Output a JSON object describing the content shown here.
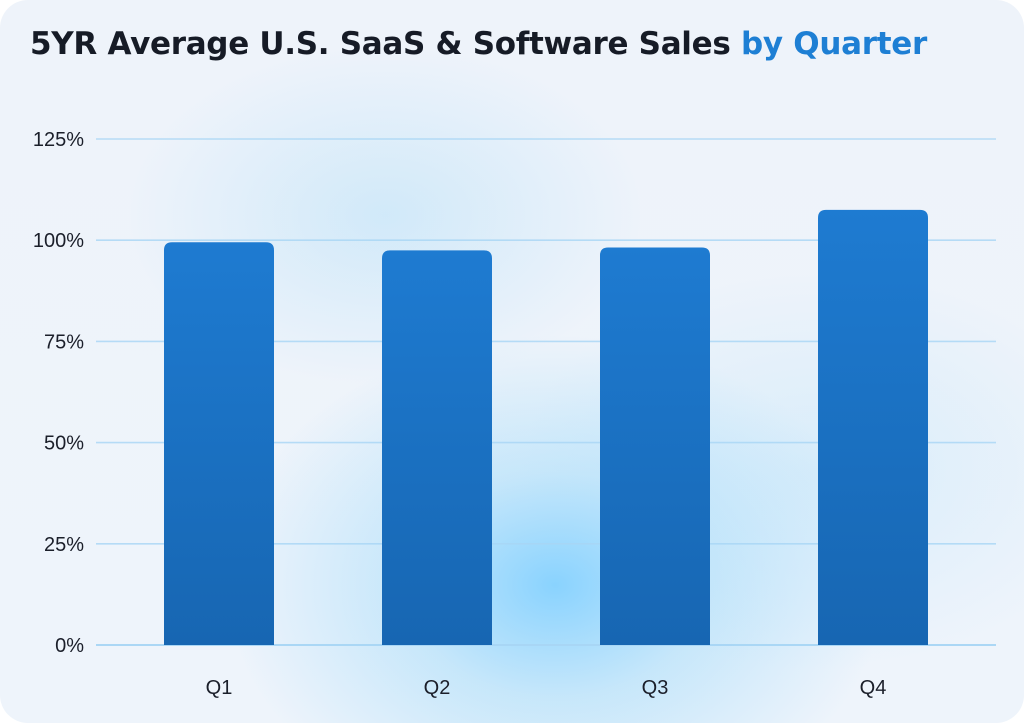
{
  "title": {
    "main": "5YR Average U.S. SaaS & Software Sales",
    "accent": "by Quarter"
  },
  "colors": {
    "bar": "#1c77cc",
    "bar_dark": "#1664b0",
    "accent": "#1e7fd4",
    "grid": "#a8d6f5"
  },
  "chart_data": {
    "type": "bar",
    "categories": [
      "Q1",
      "Q2",
      "Q3",
      "Q4"
    ],
    "values": [
      99.5,
      97.5,
      98.2,
      107.5
    ],
    "y_ticks": [
      "0%",
      "25%",
      "50%",
      "75%",
      "100%",
      "125%"
    ],
    "ylim": [
      0,
      125
    ],
    "grid": true,
    "unit": "%"
  }
}
